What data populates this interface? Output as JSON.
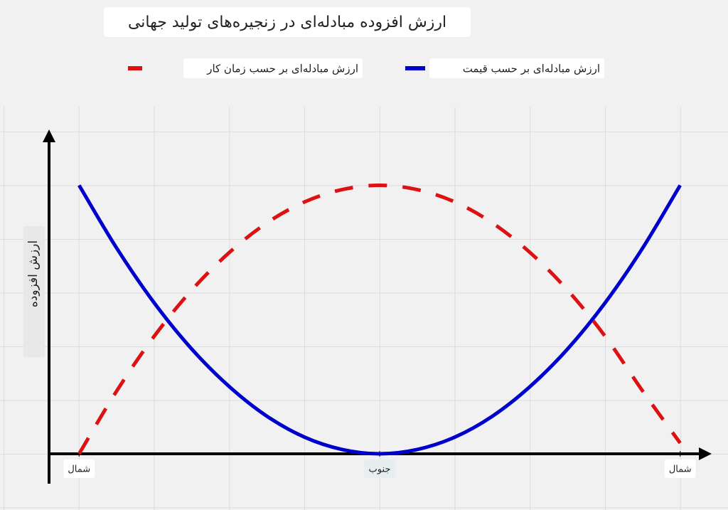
{
  "chart_data": {
    "type": "line",
    "title": "ارزش افزوده مبادله‌ای در زنجیره‌های تولید جهانی",
    "y_label": "ارزش افزوده",
    "x": [
      0,
      0.5,
      1,
      1.5,
      2,
      2.5,
      3,
      3.5,
      4,
      4.5,
      5,
      5.5,
      6,
      6.5,
      7,
      7.5,
      8
    ],
    "series": [
      {
        "name": "ارزش مبادله‌ای بر حسب قیمت",
        "color": "#0000cc",
        "style": "solid",
        "values": [
          5,
          3.83,
          2.81,
          1.95,
          1.25,
          0.7,
          0.31,
          0.08,
          0,
          0.08,
          0.31,
          0.7,
          1.25,
          1.95,
          2.81,
          3.83,
          5
        ]
      },
      {
        "name": "ارزش مبادله‌ای بر حسب زمان کار",
        "color": "#dd1111",
        "style": "dashed",
        "values": [
          0,
          1.17,
          2.19,
          3.05,
          3.75,
          4.3,
          4.69,
          4.92,
          5,
          4.92,
          4.69,
          4.3,
          3.75,
          3.05,
          2.19,
          1.17,
          0.2
        ]
      }
    ],
    "xlim": [
      -0.4,
      8.4
    ],
    "ylim": [
      0,
      6
    ],
    "xticks": [
      {
        "value": 0,
        "label": "شمال"
      },
      {
        "value": 4,
        "label": "جنوب"
      },
      {
        "value": 8,
        "label": "شمال"
      }
    ],
    "grid": true
  }
}
